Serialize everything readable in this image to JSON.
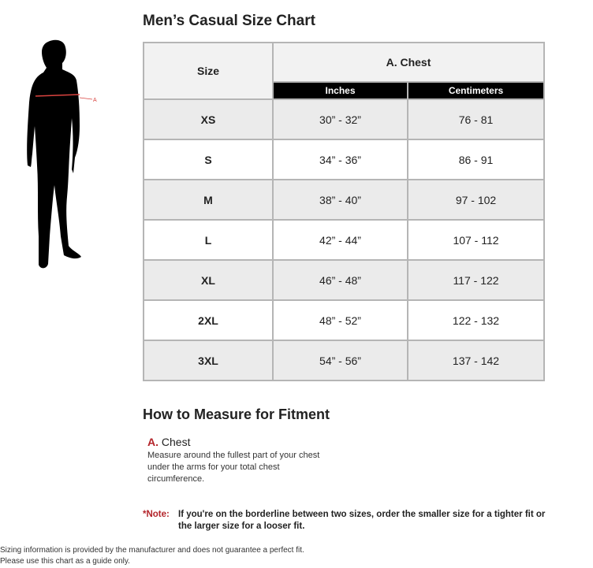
{
  "title": "Men’s Casual Size Chart",
  "figure": {
    "marker": "A",
    "marker_color": "#d9433f"
  },
  "table": {
    "size_header": "Size",
    "group_header": "A. Chest",
    "sub_headers": [
      "Inches",
      "Centimeters"
    ],
    "rows": [
      {
        "size": "XS",
        "inches": "30” - 32”",
        "cm": "76 - 81"
      },
      {
        "size": "S",
        "inches": "34” - 36”",
        "cm": "86 - 91"
      },
      {
        "size": "M",
        "inches": "38” - 40”",
        "cm": "97 - 102"
      },
      {
        "size": "L",
        "inches": "42” - 44”",
        "cm": "107 - 112"
      },
      {
        "size": "XL",
        "inches": "46” - 48”",
        "cm": "117 - 122"
      },
      {
        "size": "2XL",
        "inches": "48” - 52”",
        "cm": "122 - 132"
      },
      {
        "size": "3XL",
        "inches": "54” - 56”",
        "cm": "137 - 142"
      }
    ]
  },
  "measure": {
    "heading": "How to Measure for Fitment",
    "label_letter": "A.",
    "label_text": "Chest",
    "description": "Measure around the fullest part of your chest under the arms for your total chest circumference."
  },
  "note": {
    "key": "*Note:",
    "text": "If you're on the borderline between two sizes, order the smaller size for a tighter fit or the larger size for a looser fit."
  },
  "footer": {
    "line1": "Sizing information is provided by the manufacturer and does not guarantee a perfect fit.",
    "line2": "Please use this chart as a guide only."
  },
  "colors": {
    "accent": "#b3242a",
    "header_bg": "#f2f2f2",
    "alt_row": "#ebebeb",
    "subheader_bg": "#000000"
  }
}
